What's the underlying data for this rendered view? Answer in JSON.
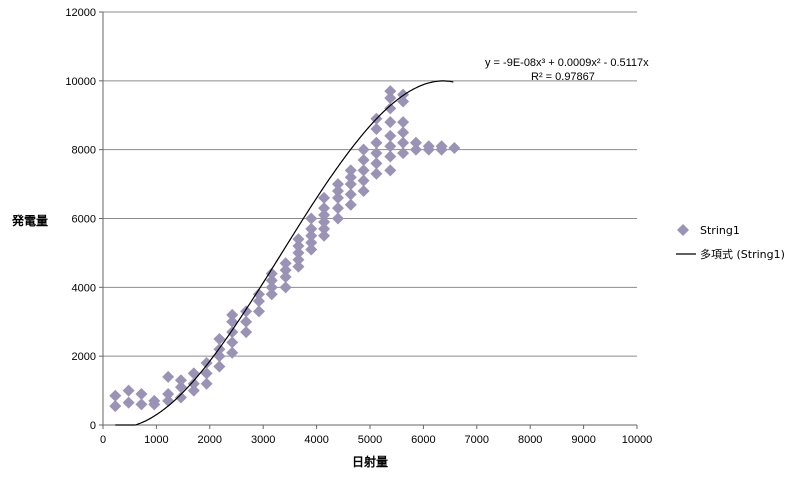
{
  "chart_data": {
    "type": "scatter",
    "xlabel": "日射量",
    "ylabel": "発電量",
    "xlim": [
      0,
      10000
    ],
    "ylim": [
      0,
      12000
    ],
    "x_ticks": [
      "0",
      "1000",
      "2000",
      "3000",
      "4000",
      "5000",
      "6000",
      "7000",
      "8000",
      "9000",
      "10000"
    ],
    "y_ticks": [
      "0",
      "2000",
      "4000",
      "6000",
      "8000",
      "10000",
      "12000"
    ],
    "grid": "horizontal",
    "legend_position": "right",
    "colors": {
      "marker": "#9b93b6",
      "trend": "#000000",
      "grid": "#8c8c8c"
    },
    "series": [
      {
        "name": "String1",
        "marker": "diamond",
        "points": [
          [
            230,
            550
          ],
          [
            230,
            850
          ],
          [
            480,
            650
          ],
          [
            480,
            1000
          ],
          [
            720,
            600
          ],
          [
            720,
            900
          ],
          [
            960,
            600
          ],
          [
            960,
            700
          ],
          [
            1220,
            700
          ],
          [
            1220,
            900
          ],
          [
            1220,
            1400
          ],
          [
            1460,
            800
          ],
          [
            1460,
            1100
          ],
          [
            1460,
            1300
          ],
          [
            1700,
            1000
          ],
          [
            1700,
            1200
          ],
          [
            1700,
            1500
          ],
          [
            1940,
            1200
          ],
          [
            1940,
            1500
          ],
          [
            1940,
            1800
          ],
          [
            2180,
            1700
          ],
          [
            2180,
            2000
          ],
          [
            2180,
            2200
          ],
          [
            2180,
            2500
          ],
          [
            2420,
            2100
          ],
          [
            2420,
            2400
          ],
          [
            2420,
            2700
          ],
          [
            2420,
            3000
          ],
          [
            2420,
            3200
          ],
          [
            2680,
            2700
          ],
          [
            2680,
            3000
          ],
          [
            2680,
            3300
          ],
          [
            2920,
            3300
          ],
          [
            2920,
            3600
          ],
          [
            2920,
            3800
          ],
          [
            3160,
            3800
          ],
          [
            3160,
            4000
          ],
          [
            3160,
            4200
          ],
          [
            3160,
            4400
          ],
          [
            3420,
            4000
          ],
          [
            3420,
            4300
          ],
          [
            3420,
            4500
          ],
          [
            3420,
            4700
          ],
          [
            3660,
            4600
          ],
          [
            3660,
            4800
          ],
          [
            3660,
            5000
          ],
          [
            3660,
            5200
          ],
          [
            3660,
            5400
          ],
          [
            3900,
            5100
          ],
          [
            3900,
            5300
          ],
          [
            3900,
            5500
          ],
          [
            3900,
            5700
          ],
          [
            3900,
            6000
          ],
          [
            4140,
            5500
          ],
          [
            4140,
            5700
          ],
          [
            4140,
            5900
          ],
          [
            4140,
            6100
          ],
          [
            4140,
            6300
          ],
          [
            4140,
            6600
          ],
          [
            4400,
            6000
          ],
          [
            4400,
            6300
          ],
          [
            4400,
            6600
          ],
          [
            4400,
            6800
          ],
          [
            4400,
            7000
          ],
          [
            4640,
            6400
          ],
          [
            4640,
            6700
          ],
          [
            4640,
            7000
          ],
          [
            4640,
            7200
          ],
          [
            4640,
            7400
          ],
          [
            4880,
            6800
          ],
          [
            4880,
            7100
          ],
          [
            4880,
            7400
          ],
          [
            4880,
            7700
          ],
          [
            4880,
            8000
          ],
          [
            5120,
            7300
          ],
          [
            5120,
            7600
          ],
          [
            5120,
            7900
          ],
          [
            5120,
            8200
          ],
          [
            5120,
            8600
          ],
          [
            5120,
            8900
          ],
          [
            5380,
            7400
          ],
          [
            5380,
            7800
          ],
          [
            5380,
            8100
          ],
          [
            5380,
            8400
          ],
          [
            5380,
            8800
          ],
          [
            5380,
            9200
          ],
          [
            5380,
            9500
          ],
          [
            5380,
            9700
          ],
          [
            5620,
            7900
          ],
          [
            5620,
            8200
          ],
          [
            5620,
            8500
          ],
          [
            5620,
            8800
          ],
          [
            5620,
            9400
          ],
          [
            5620,
            9600
          ],
          [
            5860,
            8000
          ],
          [
            5860,
            8200
          ],
          [
            6100,
            8000
          ],
          [
            6100,
            8100
          ],
          [
            6340,
            8000
          ],
          [
            6340,
            8100
          ],
          [
            6580,
            8050
          ]
        ]
      },
      {
        "name": "多項式 (String1)",
        "type": "polynomial_trendline",
        "coefficients": {
          "x3": -9e-08,
          "x2": 0.0009,
          "x1": -0.5117
        }
      }
    ],
    "annotation": {
      "equation": "y = -9E-08x³ + 0.0009x² - 0.5117x",
      "r_squared": "R² = 0.97867"
    }
  }
}
